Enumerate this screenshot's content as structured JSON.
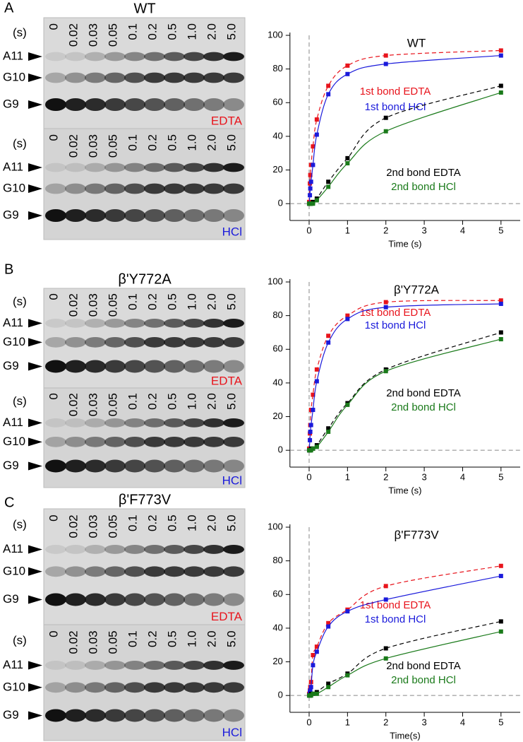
{
  "panels": [
    {
      "label": "A",
      "gel": {
        "title": "WT",
        "unit": "(s)",
        "times": [
          "0",
          "0.02",
          "0.03",
          "0.05",
          "0.1",
          "0.2",
          "0.5",
          "1.0",
          "2.0",
          "5.0"
        ],
        "bands": [
          "A11",
          "G10",
          "G9"
        ],
        "conditions": [
          "EDTA",
          "HCl"
        ]
      }
    },
    {
      "label": "B",
      "gel": {
        "title": "β'Y772A",
        "unit": "(s)",
        "times": [
          "0",
          "0.02",
          "0.03",
          "0.05",
          "0.1",
          "0.2",
          "0.5",
          "1.0",
          "2.0",
          "5.0"
        ],
        "bands": [
          "A11",
          "G10",
          "G9"
        ],
        "conditions": [
          "EDTA",
          "HCl"
        ]
      }
    },
    {
      "label": "C",
      "gel": {
        "title": "β'F773V",
        "unit": "(s)",
        "times": [
          "0",
          "0.02",
          "0.03",
          "0.05",
          "0.1",
          "0.2",
          "0.5",
          "1.0",
          "2.0",
          "5.0"
        ],
        "bands": [
          "A11",
          "G10",
          "G9"
        ],
        "conditions": [
          "EDTA",
          "HCl"
        ]
      }
    }
  ],
  "chart_data": [
    {
      "type": "scatter",
      "title": "WT",
      "xlabel": "Time (s)",
      "xlim": [
        -0.5,
        5.5
      ],
      "xticks": [
        0,
        1,
        2,
        3,
        4,
        5
      ],
      "ylim": [
        -10,
        100
      ],
      "yticks": [
        0,
        20,
        40,
        60,
        80,
        100
      ],
      "x": [
        0,
        0.02,
        0.03,
        0.05,
        0.1,
        0.2,
        0.5,
        1,
        2,
        5
      ],
      "series": [
        {
          "name": "1st bond EDTA",
          "color": "#e8141c",
          "line_style": "dashed",
          "values": [
            1,
            12,
            17,
            23,
            34,
            50,
            70,
            82,
            88,
            91
          ]
        },
        {
          "name": "1st bond HCl",
          "color": "#1a1adb",
          "line_style": "solid",
          "values": [
            0,
            5,
            9,
            13,
            23,
            41,
            65,
            77,
            83,
            88
          ]
        },
        {
          "name": "2nd bond EDTA",
          "color": "#000000",
          "line_style": "dashed",
          "values": [
            0,
            0,
            0,
            0,
            1,
            3,
            13,
            27,
            51,
            70
          ]
        },
        {
          "name": "2nd bond HCl",
          "color": "#1a7a1a",
          "line_style": "solid",
          "values": [
            0,
            0,
            0,
            0,
            0,
            2,
            10,
            24,
            43,
            66
          ]
        }
      ]
    },
    {
      "type": "scatter",
      "title": "β'Y772A",
      "xlabel": "Time (s)",
      "xlim": [
        -0.5,
        5.5
      ],
      "xticks": [
        0,
        1,
        2,
        3,
        4,
        5
      ],
      "ylim": [
        -10,
        100
      ],
      "yticks": [
        0,
        20,
        40,
        60,
        80,
        100
      ],
      "x": [
        0,
        0.02,
        0.03,
        0.05,
        0.1,
        0.2,
        0.5,
        1,
        2,
        5
      ],
      "series": [
        {
          "name": "1st bond EDTA",
          "color": "#e8141c",
          "line_style": "dashed",
          "values": [
            1,
            10,
            15,
            24,
            33,
            48,
            68,
            80,
            88,
            89
          ]
        },
        {
          "name": "1st bond HCl",
          "color": "#1a1adb",
          "line_style": "solid",
          "values": [
            0,
            6,
            11,
            15,
            24,
            41,
            64,
            78,
            85,
            87
          ]
        },
        {
          "name": "2nd bond EDTA",
          "color": "#000000",
          "line_style": "dashed",
          "values": [
            0,
            0,
            0,
            1,
            1,
            3,
            13,
            28,
            48,
            70
          ]
        },
        {
          "name": "2nd bond HCl",
          "color": "#1a7a1a",
          "line_style": "solid",
          "values": [
            0,
            0,
            0,
            0,
            1,
            2,
            11,
            27,
            47,
            66
          ]
        }
      ]
    },
    {
      "type": "scatter",
      "title": "β'F773V",
      "xlabel": "Time(s)",
      "xlim": [
        -0.5,
        5.5
      ],
      "xticks": [
        0,
        1,
        2,
        3,
        4,
        5
      ],
      "ylim": [
        -10,
        100
      ],
      "yticks": [
        0,
        20,
        40,
        60,
        80,
        100
      ],
      "x": [
        0,
        0.02,
        0.03,
        0.05,
        0.1,
        0.2,
        0.5,
        1,
        2,
        5
      ],
      "series": [
        {
          "name": "1st bond EDTA",
          "color": "#e8141c",
          "line_style": "dashed",
          "values": [
            1,
            3,
            5,
            8,
            24,
            29,
            43,
            51,
            65,
            77
          ]
        },
        {
          "name": "1st bond HCl",
          "color": "#1a1adb",
          "line_style": "solid",
          "values": [
            0,
            2,
            3,
            5,
            18,
            26,
            41,
            50,
            57,
            71
          ]
        },
        {
          "name": "2nd bond EDTA",
          "color": "#000000",
          "line_style": "dashed",
          "values": [
            0,
            0,
            0,
            1,
            1,
            2,
            7,
            13,
            28,
            44
          ]
        },
        {
          "name": "2nd bond HCl",
          "color": "#1a7a1a",
          "line_style": "solid",
          "values": [
            0,
            0,
            0,
            0,
            1,
            1,
            5,
            12,
            22,
            38
          ]
        }
      ]
    }
  ]
}
